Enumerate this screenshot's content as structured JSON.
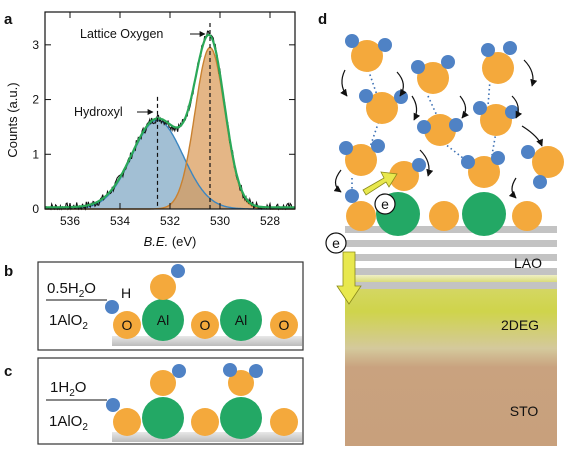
{
  "panels": {
    "a": "a",
    "b": "b",
    "c": "c",
    "d": "d"
  },
  "panel_a": {
    "ylabel": "Counts (a.u.)",
    "xlabel_italic": "B.E.",
    "xlabel_unit": " (eV)",
    "xticks": [
      "536",
      "534",
      "532",
      "530",
      "528"
    ],
    "yticks": [
      "0",
      "1",
      "2",
      "3"
    ],
    "annotation_lattice": "Lattice Oxygen",
    "annotation_hydroxyl": "Hydroxyl",
    "colors": {
      "hydroxyl_fill": "#7ea6c4",
      "hydroxyl_line": "#3b86c1",
      "lattice_fill": "#d99a57",
      "lattice_line": "#c98130",
      "envelope": "#2aa858",
      "data": "#111111"
    }
  },
  "chart_data": {
    "type": "line",
    "x_axis": "binding energy (eV), reversed",
    "xlim": [
      537,
      527
    ],
    "ylim": [
      0,
      3.6
    ],
    "annotations": [
      {
        "text": "Lattice Oxygen",
        "x": 530.4
      },
      {
        "text": "Hydroxyl",
        "x": 532.5
      }
    ],
    "series": [
      {
        "name": "Hydroxyl",
        "center": 532.5,
        "height": 1.62,
        "fwhm": 2.4
      },
      {
        "name": "Lattice Oxygen",
        "center": 530.4,
        "height": 2.95,
        "fwhm": 1.4
      }
    ]
  },
  "panel_b": {
    "frac_top": "0.5H",
    "frac_top_sub": "2",
    "frac_top_tail": "O",
    "frac_bottom": "1AlO",
    "frac_bottom_sub": "2",
    "atom_labels": [
      "O",
      "Al",
      "O",
      "Al",
      "O"
    ],
    "h_label": "H"
  },
  "panel_c": {
    "frac_top": "1H",
    "frac_top_sub": "2",
    "frac_top_tail": "O",
    "frac_bottom": "1AlO",
    "frac_bottom_sub": "2"
  },
  "panel_d": {
    "layer_lao": "LAO",
    "layer_2deg": "2DEG",
    "layer_sto": "STO",
    "electron_label": "e",
    "colors": {
      "oxygen": "#f4a93c",
      "hydrogen": "#4f82c5",
      "aluminum": "#23a865",
      "arrow": "#e8e85a",
      "twodeg": "#cfd44b",
      "sto": "#c9a27f"
    }
  }
}
